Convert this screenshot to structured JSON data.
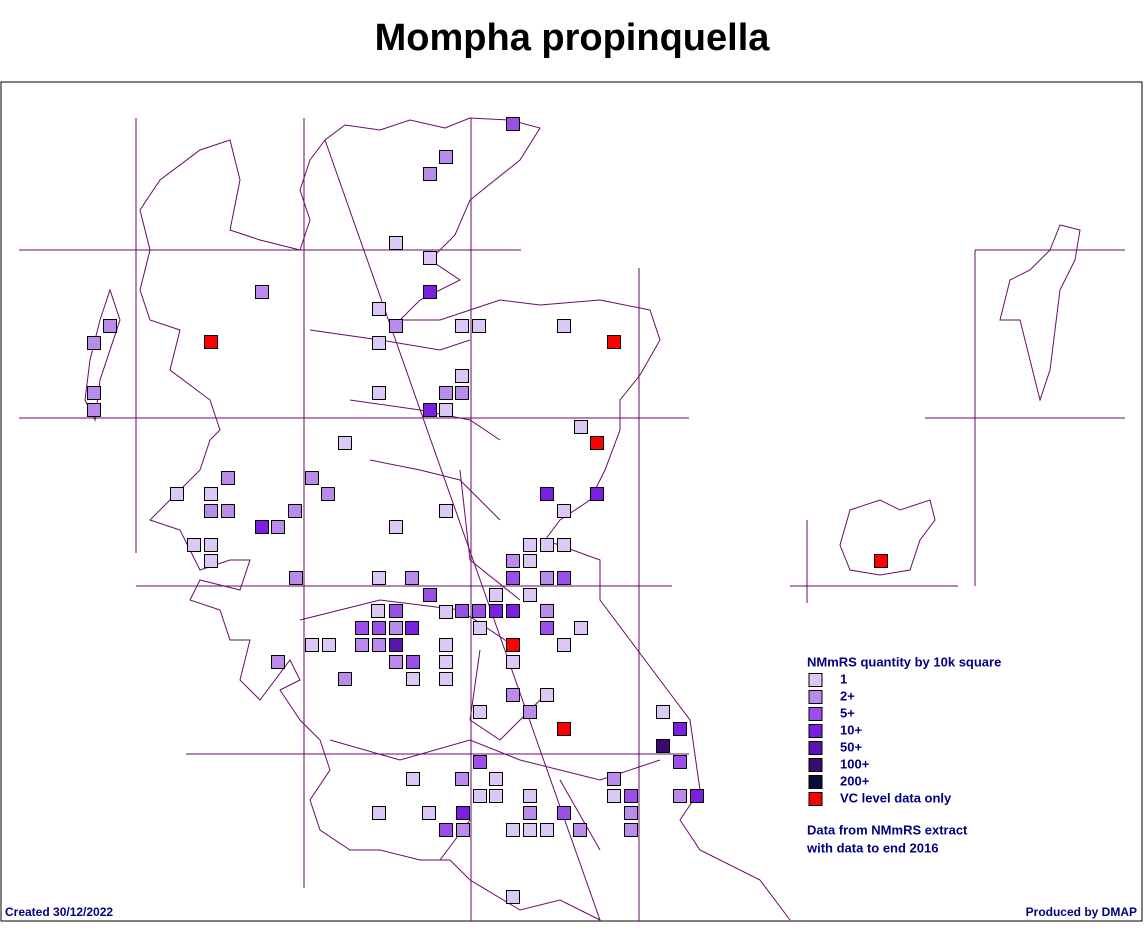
{
  "header": {
    "title": "Mompha propinquella"
  },
  "legend": {
    "title": "NMmRS quantity by 10k square",
    "items": [
      {
        "label": "1",
        "color": "#dcc8f5"
      },
      {
        "label": "2+",
        "color": "#b98ceb"
      },
      {
        "label": "5+",
        "color": "#9a4fe8"
      },
      {
        "label": "10+",
        "color": "#7a1ee0"
      },
      {
        "label": "50+",
        "color": "#5a14b0"
      },
      {
        "label": "100+",
        "color": "#3a0a70"
      },
      {
        "label": "200+",
        "color": "#0a0a3c"
      },
      {
        "label": "VC level data only",
        "color": "#ff0000"
      }
    ]
  },
  "notes": [
    "Data from NMmRS extract",
    "with data to end 2016"
  ],
  "footer": {
    "created": "Created 30/12/2022",
    "produced": "Produced by DMAP"
  }
}
